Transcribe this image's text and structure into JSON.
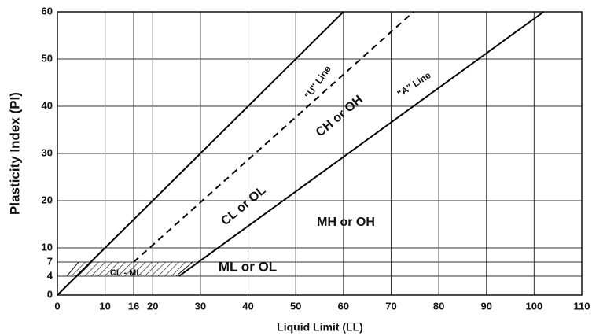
{
  "chart_data": {
    "type": "line",
    "x_label": "Liquid Limit (LL)",
    "y_label": "Plasticity Index (PI)",
    "xlim": [
      0,
      110
    ],
    "ylim": [
      0,
      60
    ],
    "xticks": [
      0,
      10,
      16,
      20,
      30,
      40,
      50,
      60,
      70,
      80,
      90,
      100,
      110
    ],
    "yticks": [
      0,
      4,
      7,
      10,
      20,
      30,
      40,
      50,
      60
    ],
    "grid": true,
    "series": [
      {
        "color": "#000000",
        "dashed": false,
        "x": [
          0,
          60
        ],
        "values": [
          0,
          60
        ]
      },
      {
        "name": "\"U\" Line",
        "color": "#000000",
        "dashed": true,
        "x": [
          16,
          74.7
        ],
        "values": [
          7,
          60
        ]
      },
      {
        "name": "\"A\" Line",
        "color": "#000000",
        "dashed": false,
        "x": [
          25.5,
          102
        ],
        "values": [
          4,
          60
        ]
      }
    ],
    "annotations": [
      "CL - ML",
      "ML or OL",
      "CL or OL",
      "CH or OH",
      "MH or OH"
    ]
  }
}
